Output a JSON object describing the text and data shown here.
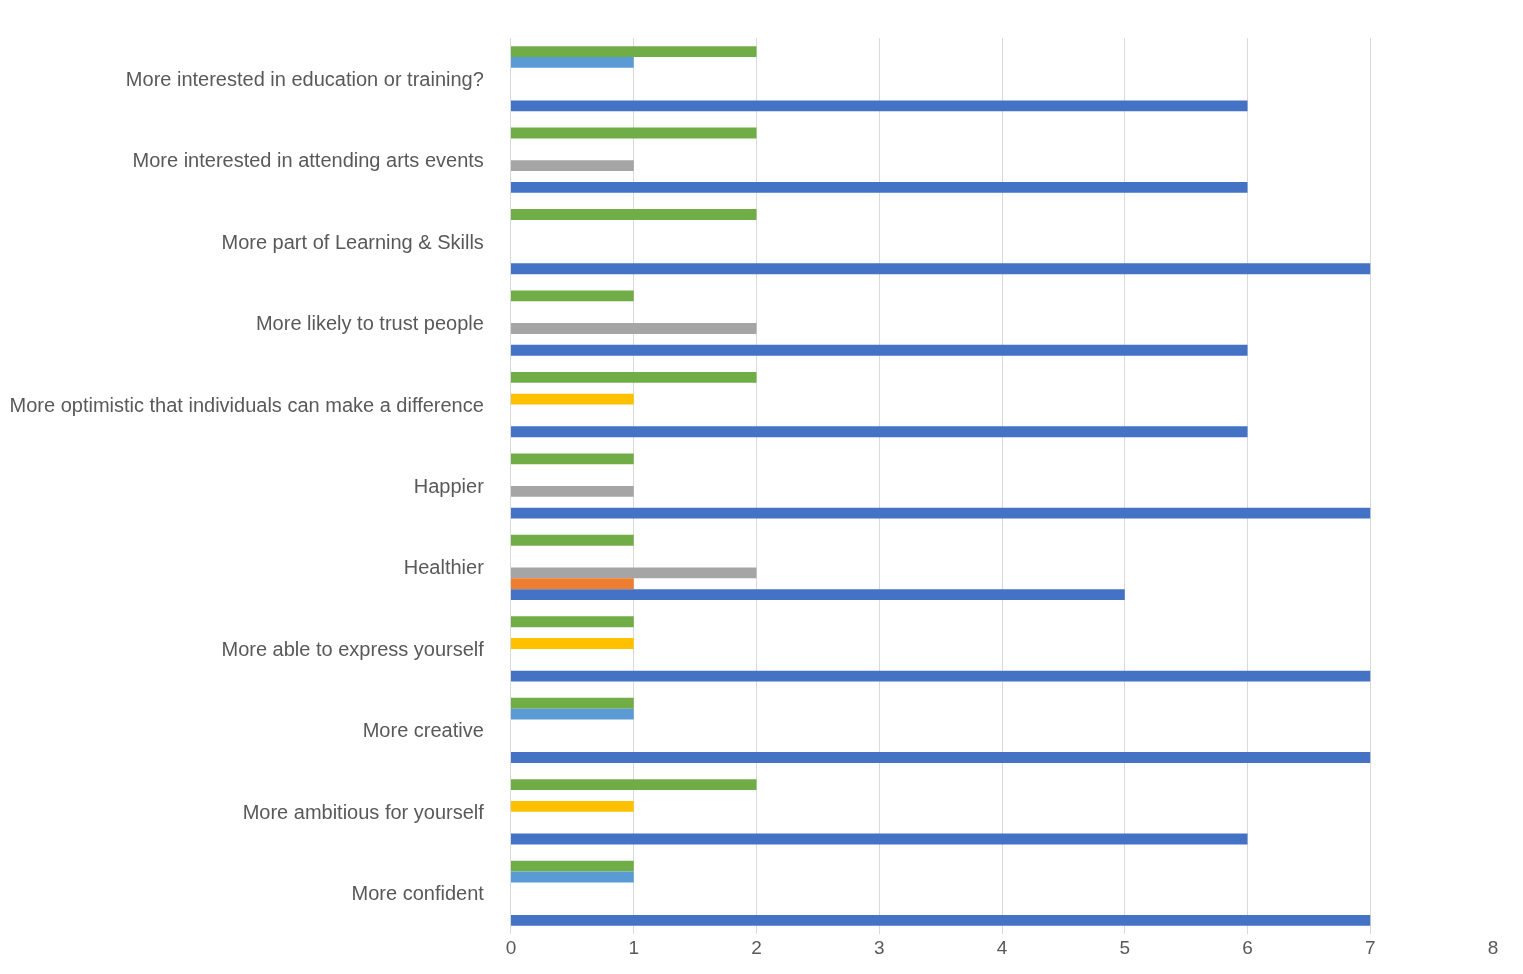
{
  "chart_data": {
    "type": "bar",
    "orientation": "horizontal",
    "categories": [
      "More interested in education or training?",
      "More interested in attending arts events",
      "More part of Learning & Skills",
      "More likely to trust people",
      "More optimistic that individuals can make a difference",
      "Happier",
      "Healthier",
      "More able to express yourself",
      "More creative",
      "More ambitious for yourself",
      "More confident"
    ],
    "series": [
      {
        "color": "#70ad47",
        "values": [
          2,
          2,
          2,
          1,
          2,
          1,
          1,
          1,
          1,
          2,
          1
        ]
      },
      {
        "color": "#5b9bd5",
        "values": [
          1,
          null,
          null,
          null,
          null,
          null,
          null,
          null,
          1,
          null,
          1
        ]
      },
      {
        "color": "#ffc000",
        "values": [
          null,
          null,
          null,
          null,
          1,
          null,
          null,
          1,
          null,
          1,
          null
        ]
      },
      {
        "color": "#a5a5a5",
        "values": [
          null,
          1,
          null,
          2,
          null,
          1,
          2,
          null,
          null,
          null,
          null
        ]
      },
      {
        "color": "#ed7d31",
        "values": [
          null,
          null,
          null,
          null,
          null,
          null,
          1,
          null,
          null,
          null,
          null
        ]
      },
      {
        "color": "#4472c4",
        "values": [
          6,
          6,
          7,
          6,
          6,
          7,
          5,
          7,
          7,
          6,
          7
        ]
      }
    ],
    "xlim": [
      0,
      8
    ],
    "xticks": [
      0,
      1,
      2,
      3,
      4,
      5,
      6,
      7,
      8
    ],
    "grid": "x"
  }
}
